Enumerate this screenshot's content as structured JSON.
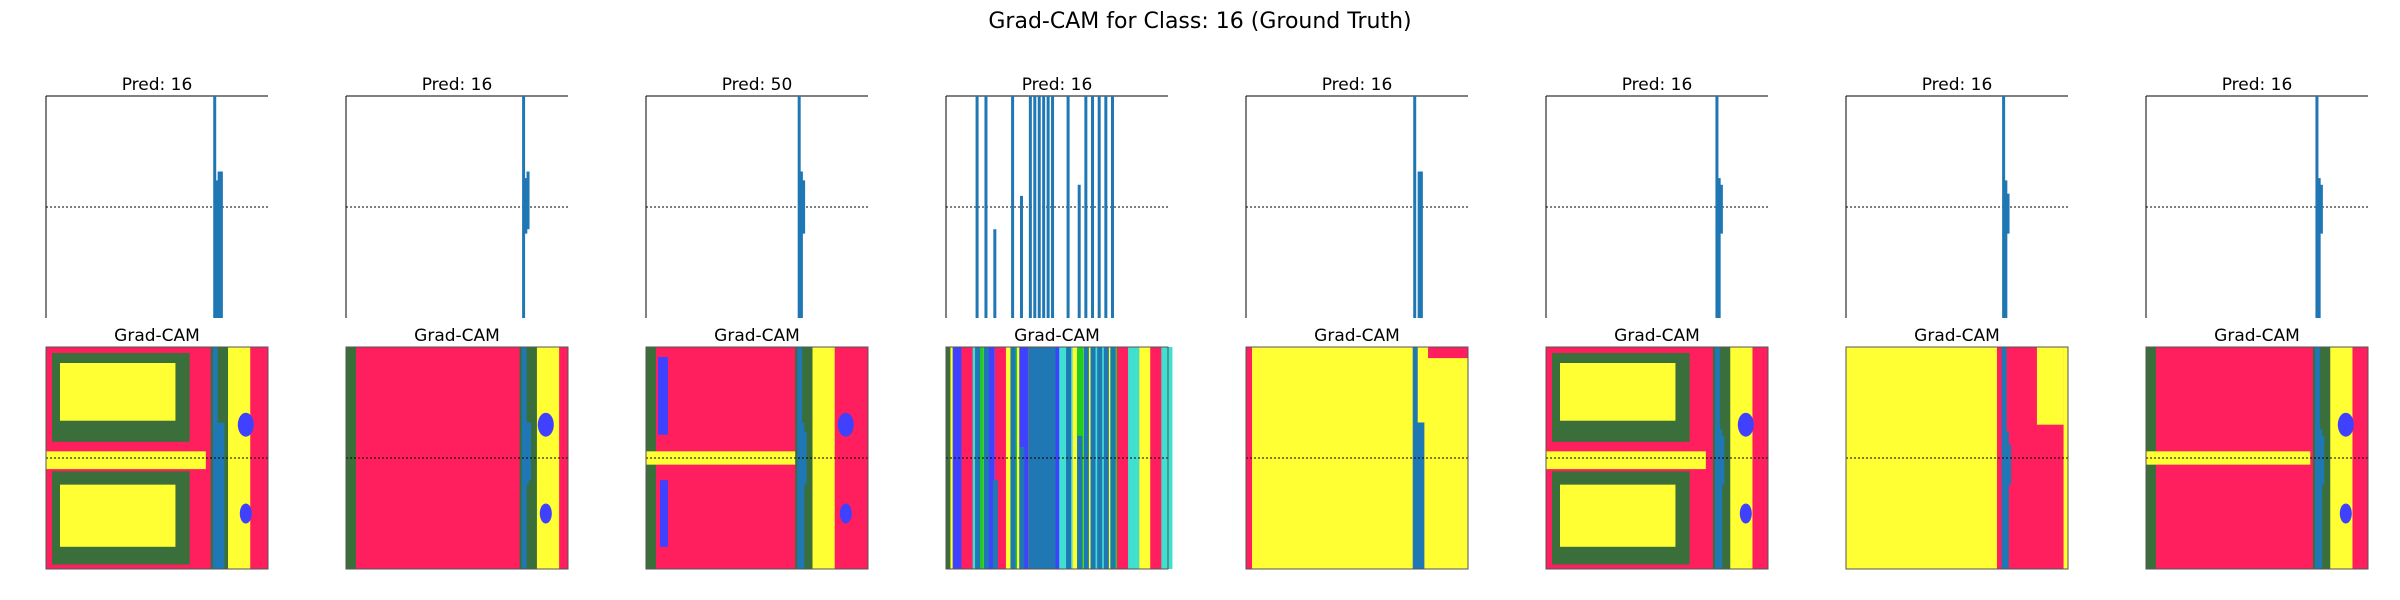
{
  "title": "Grad-CAM for Class: 16 (Ground Truth)",
  "heatmap_label": "Grad-CAM",
  "colors": {
    "signal": "#1f77b4",
    "axis": "#000000",
    "hot": "#ff1f5e",
    "warm": "#ffff33",
    "mid": "#3a6e3a",
    "cool": "#4040ff",
    "teal": "#40e0d0",
    "green": "#22cc22"
  },
  "chart_data": {
    "type": "line",
    "panels": [
      {
        "pred_label": "Pred: 16",
        "heatmap_style": "blocks",
        "signal": [
          {
            "x": 0.76,
            "top": 1.0,
            "bottom": 0.0
          },
          {
            "x": 0.77,
            "top": 0.62,
            "bottom": 0.0
          },
          {
            "x": 0.78,
            "top": 0.66,
            "bottom": 0.0
          },
          {
            "x": 0.79,
            "top": 0.66,
            "bottom": 0.0
          }
        ]
      },
      {
        "pred_label": "Pred: 16",
        "heatmap_style": "full",
        "signal": [
          {
            "x": 0.8,
            "top": 1.0,
            "bottom": 0.0
          },
          {
            "x": 0.81,
            "top": 0.63,
            "bottom": 0.38
          },
          {
            "x": 0.82,
            "top": 0.66,
            "bottom": 0.4
          }
        ]
      },
      {
        "pred_label": "Pred: 50",
        "heatmap_style": "full-noisy",
        "signal": [
          {
            "x": 0.69,
            "top": 1.0,
            "bottom": 0.0
          },
          {
            "x": 0.7,
            "top": 0.66,
            "bottom": 0.0
          },
          {
            "x": 0.71,
            "top": 0.62,
            "bottom": 0.38
          }
        ]
      },
      {
        "pred_label": "Pred: 16",
        "heatmap_style": "noisy",
        "signal": [
          {
            "x": 0.14,
            "top": 1.0,
            "bottom": 0.0
          },
          {
            "x": 0.18,
            "top": 1.0,
            "bottom": 0.0
          },
          {
            "x": 0.22,
            "top": 0.4,
            "bottom": 0.0
          },
          {
            "x": 0.3,
            "top": 1.0,
            "bottom": 0.0
          },
          {
            "x": 0.34,
            "top": 0.55,
            "bottom": 0.0
          },
          {
            "x": 0.38,
            "top": 1.0,
            "bottom": 0.0
          },
          {
            "x": 0.4,
            "top": 1.0,
            "bottom": 0.0
          },
          {
            "x": 0.42,
            "top": 1.0,
            "bottom": 0.0
          },
          {
            "x": 0.44,
            "top": 1.0,
            "bottom": 0.0
          },
          {
            "x": 0.46,
            "top": 1.0,
            "bottom": 0.0
          },
          {
            "x": 0.48,
            "top": 1.0,
            "bottom": 0.0
          },
          {
            "x": 0.55,
            "top": 1.0,
            "bottom": 0.0
          },
          {
            "x": 0.6,
            "top": 0.6,
            "bottom": 0.0
          },
          {
            "x": 0.63,
            "top": 1.0,
            "bottom": 0.0
          },
          {
            "x": 0.66,
            "top": 1.0,
            "bottom": 0.0
          },
          {
            "x": 0.69,
            "top": 1.0,
            "bottom": 0.0
          },
          {
            "x": 0.72,
            "top": 1.0,
            "bottom": 0.0
          },
          {
            "x": 0.75,
            "top": 1.0,
            "bottom": 0.0
          }
        ]
      },
      {
        "pred_label": "Pred: 16",
        "heatmap_style": "yellow",
        "signal": [
          {
            "x": 0.76,
            "top": 1.0,
            "bottom": 0.0
          },
          {
            "x": 0.78,
            "top": 0.66,
            "bottom": 0.0
          },
          {
            "x": 0.79,
            "top": 0.66,
            "bottom": 0.0
          }
        ]
      },
      {
        "pred_label": "Pred: 16",
        "heatmap_style": "blocks-noisy",
        "signal": [
          {
            "x": 0.77,
            "top": 1.0,
            "bottom": 0.0
          },
          {
            "x": 0.78,
            "top": 0.63,
            "bottom": 0.0
          },
          {
            "x": 0.79,
            "top": 0.6,
            "bottom": 0.38
          }
        ]
      },
      {
        "pred_label": "Pred: 16",
        "heatmap_style": "yellow-pink",
        "signal": [
          {
            "x": 0.71,
            "top": 1.0,
            "bottom": 0.0
          },
          {
            "x": 0.72,
            "top": 0.62,
            "bottom": 0.0
          },
          {
            "x": 0.73,
            "top": 0.56,
            "bottom": 0.38
          }
        ]
      },
      {
        "pred_label": "Pred: 16",
        "heatmap_style": "top-block",
        "signal": [
          {
            "x": 0.77,
            "top": 1.0,
            "bottom": 0.0
          },
          {
            "x": 0.78,
            "top": 0.63,
            "bottom": 0.0
          },
          {
            "x": 0.79,
            "top": 0.6,
            "bottom": 0.38
          }
        ]
      }
    ],
    "reference_line_y": 0.5,
    "ylim": [
      0,
      1
    ],
    "xlim": [
      0,
      1
    ]
  }
}
